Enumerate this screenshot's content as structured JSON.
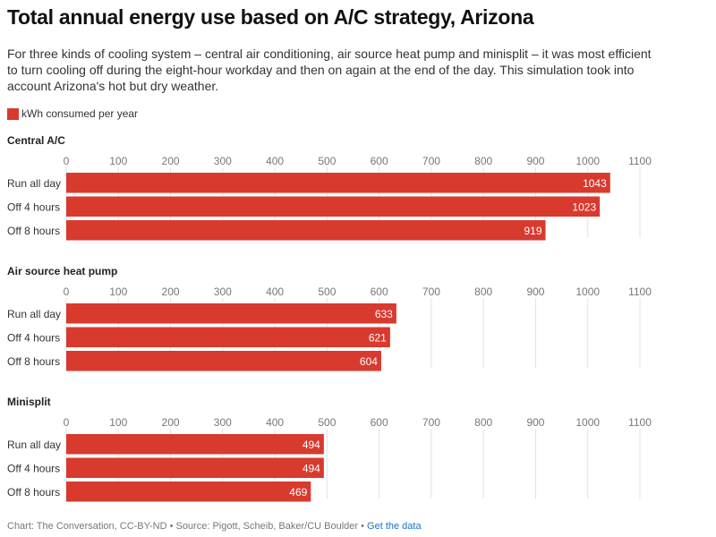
{
  "title": "Total annual energy use based on A/C strategy, Arizona",
  "subtitle": "For three kinds of cooling system – central air conditioning, air source heat pump and minisplit – it was most efficient to turn cooling off during the eight-hour workday and then on again at the end of the day. This simulation took into account Arizona's hot but dry weather.",
  "legend": {
    "label": "kWh consumed per year",
    "color": "#d83a2e"
  },
  "footer": {
    "credit": "Chart: The Conversation, CC-BY-ND • Source: Pigott, Scheib, Baker/CU Boulder • ",
    "link_label": "Get the data"
  },
  "colors": {
    "bar": "#d83a2e",
    "grid": "#e3e3e3",
    "label": "#333333",
    "tick": "#777777",
    "link": "#1a73c8"
  },
  "chart_data": [
    {
      "type": "bar",
      "orientation": "horizontal",
      "title": "Central A/C",
      "categories": [
        "Run all day",
        "Off 4 hours",
        "Off 8 hours"
      ],
      "values": [
        1043,
        1023,
        919
      ],
      "xlim": [
        0,
        1100
      ],
      "ticks": [
        0,
        100,
        200,
        300,
        400,
        500,
        600,
        700,
        800,
        900,
        1000,
        1100
      ],
      "grid": true
    },
    {
      "type": "bar",
      "orientation": "horizontal",
      "title": "Air source heat pump",
      "categories": [
        "Run all day",
        "Off 4 hours",
        "Off 8 hours"
      ],
      "values": [
        633,
        621,
        604
      ],
      "xlim": [
        0,
        1100
      ],
      "ticks": [
        0,
        100,
        200,
        300,
        400,
        500,
        600,
        700,
        800,
        900,
        1000,
        1100
      ],
      "grid": true
    },
    {
      "type": "bar",
      "orientation": "horizontal",
      "title": "Minisplit",
      "categories": [
        "Run all day",
        "Off 4 hours",
        "Off 8 hours"
      ],
      "values": [
        494,
        494,
        469
      ],
      "xlim": [
        0,
        1100
      ],
      "ticks": [
        0,
        100,
        200,
        300,
        400,
        500,
        600,
        700,
        800,
        900,
        1000,
        1100
      ],
      "grid": true
    }
  ]
}
